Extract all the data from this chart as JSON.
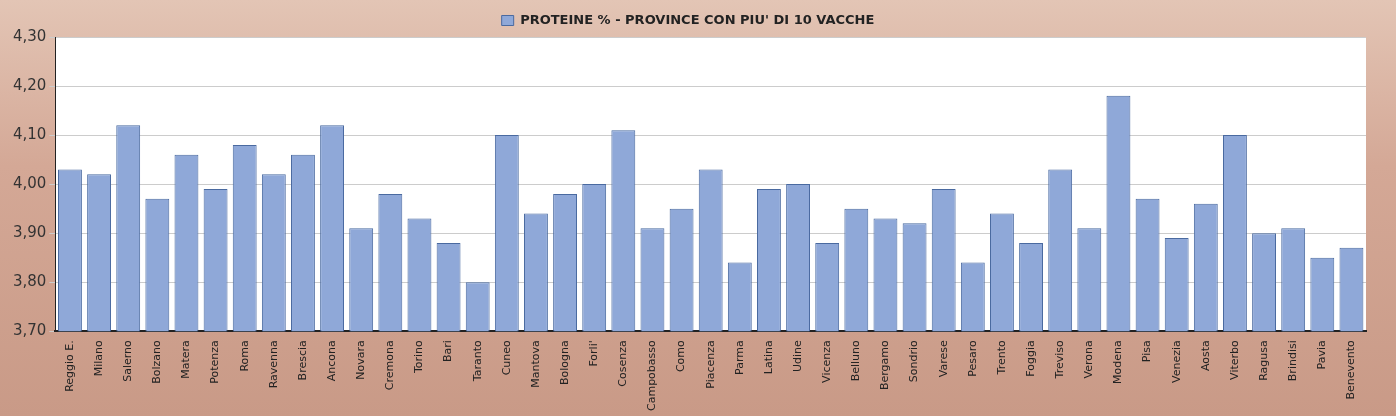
{
  "chart_data": {
    "type": "bar",
    "categories": [
      "Reggio E.",
      "Milano",
      "Salerno",
      "Bolzano",
      "Matera",
      "Potenza",
      "Roma",
      "Ravenna",
      "Brescia",
      "Ancona",
      "Novara",
      "Cremona",
      "Torino",
      "Bari",
      "Taranto",
      "Cuneo",
      "Mantova",
      "Bologna",
      "Forli'",
      "Cosenza",
      "Campobasso",
      "Como",
      "Piacenza",
      "Parma",
      "Latina",
      "Udine",
      "Vicenza",
      "Belluno",
      "Bergamo",
      "Sondrio",
      "Varese",
      "Pesaro",
      "Trento",
      "Foggia",
      "Treviso",
      "Verona",
      "Modena",
      "Pisa",
      "Venezia",
      "Aosta",
      "Viterbo",
      "Ragusa",
      "Brindisi",
      "Pavia",
      "Benevento"
    ],
    "series": [
      {
        "name": "PROTEINE % - PROVINCE CON PIU' DI 10 VACCHE",
        "color": "#8fa8d8",
        "values": [
          4.03,
          4.02,
          4.12,
          3.97,
          4.06,
          3.99,
          4.08,
          4.02,
          4.06,
          4.12,
          3.91,
          3.98,
          3.93,
          3.88,
          3.8,
          4.1,
          3.94,
          3.98,
          4.0,
          4.11,
          3.91,
          3.95,
          4.03,
          3.84,
          3.99,
          4.0,
          3.88,
          3.95,
          3.93,
          3.92,
          3.99,
          3.84,
          3.94,
          3.88,
          4.03,
          3.91,
          4.18,
          3.97,
          3.89,
          3.96,
          4.1,
          3.9,
          3.91,
          3.85,
          3.87
        ]
      }
    ],
    "ylim": [
      3.7,
      4.3
    ],
    "yticks": [
      {
        "value": 3.7,
        "label": "3,70"
      },
      {
        "value": 3.8,
        "label": "3,80"
      },
      {
        "value": 3.9,
        "label": "3,90"
      },
      {
        "value": 4.0,
        "label": "4,00"
      },
      {
        "value": 4.1,
        "label": "4,10"
      },
      {
        "value": 4.2,
        "label": "4,20"
      },
      {
        "value": 4.3,
        "label": "4,30"
      }
    ],
    "grid": "y",
    "legend": "top"
  }
}
